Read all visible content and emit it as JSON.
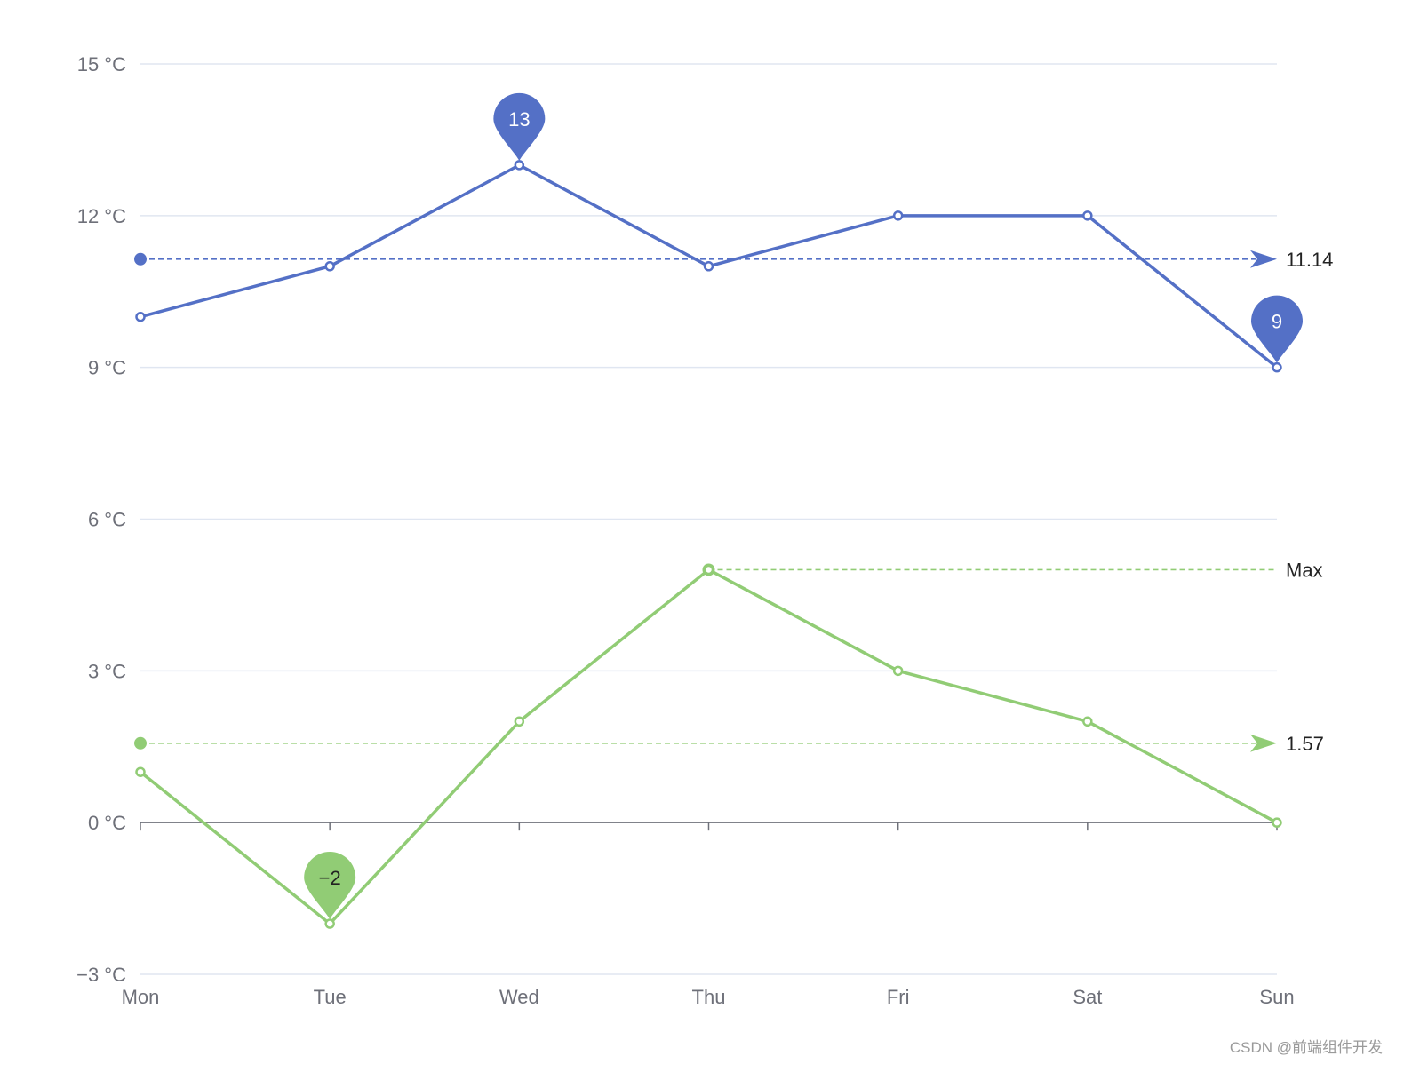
{
  "watermark": "CSDN @前端组件开发",
  "chart_data": {
    "type": "line",
    "categories": [
      "Mon",
      "Tue",
      "Wed",
      "Thu",
      "Fri",
      "Sat",
      "Sun"
    ],
    "y_ticks": [
      {
        "value": 15,
        "label": "15 °C"
      },
      {
        "value": 12,
        "label": "12 °C"
      },
      {
        "value": 9,
        "label": "9 °C"
      },
      {
        "value": 6,
        "label": "6 °C"
      },
      {
        "value": 3,
        "label": "3 °C"
      },
      {
        "value": 0,
        "label": "0 °C"
      },
      {
        "value": -3,
        "label": "−3 °C"
      }
    ],
    "ylim": [
      -3,
      15
    ],
    "grid": true,
    "legend": "none",
    "series": [
      {
        "color": "#5470c6",
        "values": [
          10,
          11,
          13,
          11,
          12,
          12,
          9
        ],
        "mark_points": [
          {
            "category": "Wed",
            "value": 13,
            "label": "13"
          },
          {
            "category": "Sun",
            "value": 9,
            "label": "9"
          }
        ],
        "mark_lines": [
          {
            "kind": "average",
            "value": 11.14,
            "label": "11.14"
          }
        ]
      },
      {
        "color": "#91cc75",
        "values": [
          1,
          -2,
          2,
          5,
          3,
          2,
          0
        ],
        "mark_points": [
          {
            "category": "Tue",
            "value": -2,
            "label": "−2"
          }
        ],
        "mark_lines": [
          {
            "kind": "average",
            "value": 1.57,
            "label": "1.57"
          },
          {
            "kind": "max",
            "value": 5,
            "label": "Max",
            "from_category": "Thu"
          }
        ]
      }
    ]
  }
}
